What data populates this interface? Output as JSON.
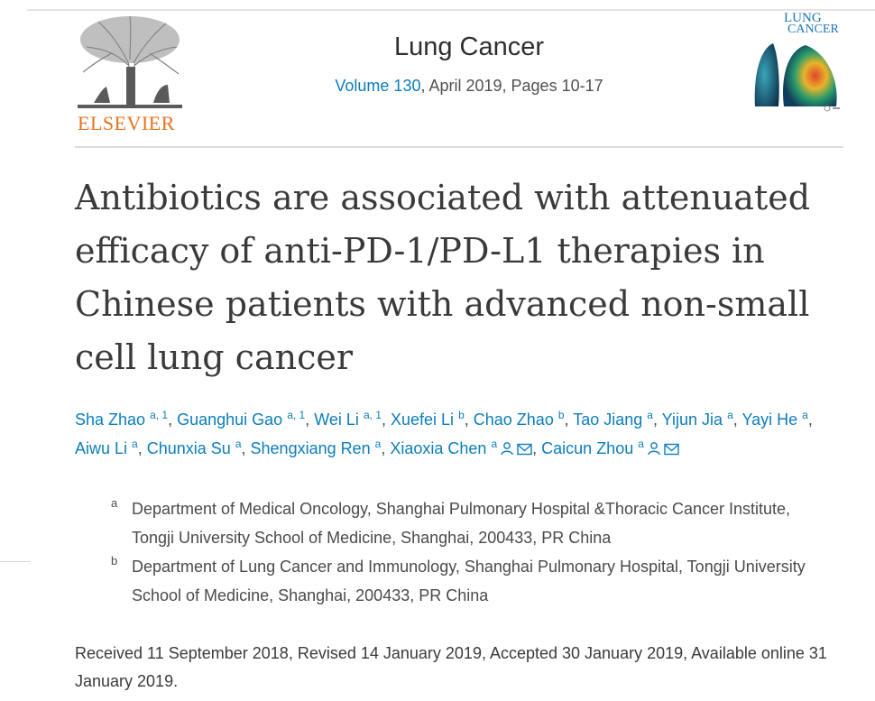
{
  "header": {
    "publisher": "ELSEVIER",
    "journal": "Lung Cancer",
    "volume_link": "Volume 130",
    "issue_rest": ", April 2019, Pages 10-17",
    "cover_line1": "LUNG",
    "cover_line2": "CANCER"
  },
  "article": {
    "title": "Antibiotics are associated with attenuated efficacy of anti-PD-1/PD-L1 therapies in Chinese patients with advanced non-small cell lung cancer"
  },
  "authors": [
    {
      "name": "Sha Zhao",
      "sup": "a, 1"
    },
    {
      "name": "Guanghui Gao",
      "sup": "a, 1"
    },
    {
      "name": "Wei Li",
      "sup": "a, 1"
    },
    {
      "name": "Xuefei Li",
      "sup": "b"
    },
    {
      "name": "Chao Zhao",
      "sup": "b"
    },
    {
      "name": "Tao Jiang",
      "sup": "a"
    },
    {
      "name": "Yijun Jia",
      "sup": "a"
    },
    {
      "name": "Yayi He",
      "sup": "a"
    },
    {
      "name": "Aiwu Li",
      "sup": "a"
    },
    {
      "name": "Chunxia Su",
      "sup": "a"
    },
    {
      "name": "Shengxiang Ren",
      "sup": "a"
    },
    {
      "name": "Xiaoxia Chen",
      "sup": "a"
    },
    {
      "name": "Caicun Zhou",
      "sup": "a"
    }
  ],
  "author_icons": [
    "person-icon",
    "envelope-icon"
  ],
  "affiliations": [
    {
      "mark": "a",
      "text": "Department of Medical Oncology, Shanghai Pulmonary Hospital &Thoracic Cancer Institute, Tongji University School of Medicine, Shanghai, 200433, PR China"
    },
    {
      "mark": "b",
      "text": "Department of Lung Cancer and Immunology, Shanghai Pulmonary Hospital, Tongji University School of Medicine, Shanghai, 200433, PR China"
    }
  ],
  "dates": "Received 11 September 2018, Revised 14 January 2019, Accepted 30 January 2019, Available online 31 January 2019.",
  "colors": {
    "link": "#0c7dbb",
    "brand": "#e9711c"
  }
}
